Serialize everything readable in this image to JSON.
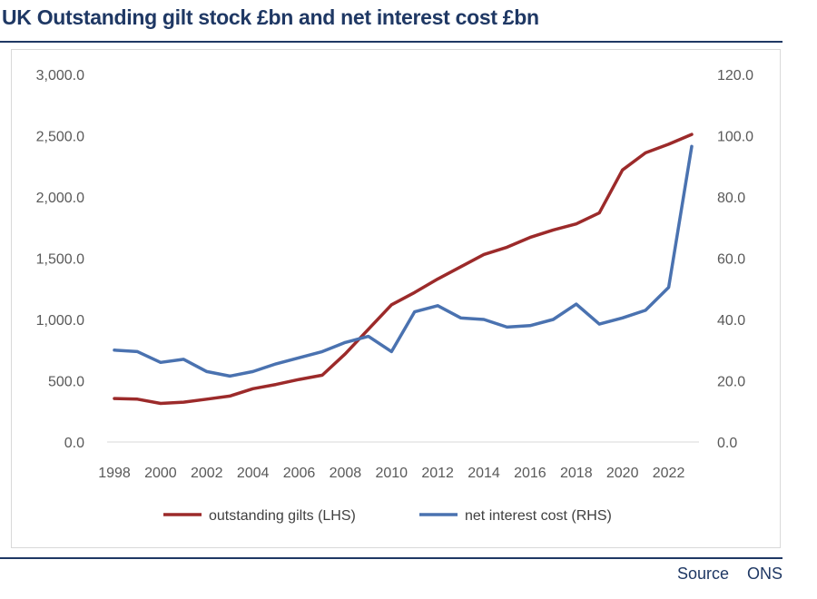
{
  "header": {
    "title": "UK Outstanding gilt stock £bn and net interest cost £bn"
  },
  "footer": {
    "source_label": "Source",
    "source_value": "ONS"
  },
  "chart_data": {
    "type": "line",
    "title": "UK Outstanding gilt stock £bn and net interest cost £bn",
    "x": [
      1998,
      1999,
      2000,
      2001,
      2002,
      2003,
      2004,
      2005,
      2006,
      2007,
      2008,
      2009,
      2010,
      2011,
      2012,
      2013,
      2014,
      2015,
      2016,
      2017,
      2018,
      2019,
      2020,
      2021,
      2022,
      2023
    ],
    "x_tick_labels": [
      "1998",
      "2000",
      "2002",
      "2004",
      "2006",
      "2008",
      "2010",
      "2012",
      "2014",
      "2016",
      "2018",
      "2020",
      "2022"
    ],
    "y_left": {
      "ylim": [
        0,
        3000
      ],
      "ticks": [
        "0.0",
        "500.0",
        "1,000.0",
        "1,500.0",
        "2,000.0",
        "2,500.0",
        "3,000.0"
      ]
    },
    "y_right": {
      "ylim": [
        0,
        120
      ],
      "ticks": [
        "0.0",
        "20.0",
        "40.0",
        "60.0",
        "80.0",
        "100.0",
        "120.0"
      ]
    },
    "series": [
      {
        "name": "outstanding gilts (LHS)",
        "axis": "left",
        "color": "#9c2a2a",
        "values": [
          355,
          350,
          315,
          325,
          350,
          375,
          435,
          470,
          510,
          545,
          720,
          920,
          1120,
          1220,
          1330,
          1430,
          1530,
          1590,
          1670,
          1730,
          1780,
          1870,
          2220,
          2360,
          2430,
          2510
        ]
      },
      {
        "name": "net interest cost (RHS)",
        "axis": "right",
        "color": "#4a72b0",
        "values": [
          30,
          29.5,
          26,
          27,
          23,
          21.5,
          23,
          25.5,
          27.5,
          29.5,
          32.5,
          34.5,
          29.5,
          42.5,
          44.5,
          40.5,
          40,
          37.5,
          38,
          40,
          45,
          38.5,
          40.5,
          43,
          50.5,
          96.5
        ]
      }
    ],
    "legend": {
      "placement": "bottom"
    },
    "grid": false
  }
}
